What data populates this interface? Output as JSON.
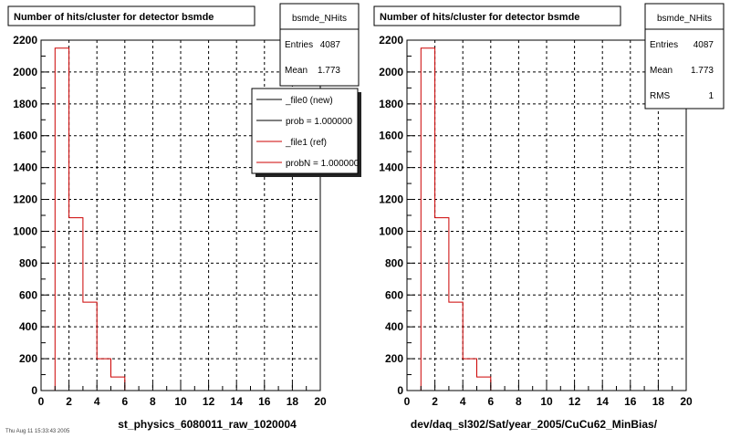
{
  "footer_text": "Thu Aug 11 15:33:43 2005",
  "legend": {
    "items": [
      {
        "label": "_file0 (new)",
        "color": "#000000"
      },
      {
        "label": "prob = 1.000000",
        "color": "#000000"
      },
      {
        "label": "_file1 (ref)",
        "color": "#cc0000"
      },
      {
        "label": "probN = 1.000000",
        "color": "#cc0000"
      }
    ]
  },
  "panels": [
    {
      "title": "Number of hits/cluster for detector bsmde",
      "stats": {
        "name": "bsmde_NHits",
        "rows": [
          {
            "label": "Entries",
            "value": "4087"
          },
          {
            "label": "Mean",
            "value": "1.773"
          }
        ]
      },
      "xlabel": "st_physics_6080011_raw_1020004"
    },
    {
      "title": "Number of hits/cluster for detector bsmde",
      "stats": {
        "name": "bsmde_NHits",
        "rows": [
          {
            "label": "Entries",
            "value": "4087"
          },
          {
            "label": "Mean",
            "value": "1.773"
          },
          {
            "label": "RMS",
            "value": "1"
          }
        ]
      },
      "xlabel": "dev/daq_sl302/Sat/year_2005/CuCu62_MinBias/"
    }
  ],
  "chart_data": [
    {
      "type": "bar",
      "title": "Number of hits/cluster for detector bsmde",
      "xlabel": "st_physics_6080011_raw_1020004",
      "ylabel": "",
      "xlim": [
        0,
        20
      ],
      "ylim": [
        0,
        2200
      ],
      "grid": true,
      "x_ticks": [
        0,
        2,
        4,
        6,
        8,
        10,
        12,
        14,
        16,
        18,
        20
      ],
      "y_ticks": [
        0,
        200,
        400,
        600,
        800,
        1000,
        1200,
        1400,
        1600,
        1800,
        2000,
        2200
      ],
      "bin_edges": [
        1,
        2,
        3,
        4,
        5,
        6
      ],
      "series": [
        {
          "name": "_file1 (ref)",
          "color": "#cc0000",
          "values": [
            2150,
            1085,
            555,
            200,
            85
          ]
        }
      ]
    },
    {
      "type": "bar",
      "title": "Number of hits/cluster for detector bsmde",
      "xlabel": "dev/daq_sl302/Sat/year_2005/CuCu62_MinBias/",
      "ylabel": "",
      "xlim": [
        0,
        20
      ],
      "ylim": [
        0,
        2200
      ],
      "grid": true,
      "x_ticks": [
        0,
        2,
        4,
        6,
        8,
        10,
        12,
        14,
        16,
        18,
        20
      ],
      "y_ticks": [
        0,
        200,
        400,
        600,
        800,
        1000,
        1200,
        1400,
        1600,
        1800,
        2000,
        2200
      ],
      "bin_edges": [
        1,
        2,
        3,
        4,
        5,
        6
      ],
      "series": [
        {
          "color": "#cc0000",
          "values": [
            2150,
            1085,
            555,
            200,
            85
          ]
        }
      ]
    }
  ]
}
